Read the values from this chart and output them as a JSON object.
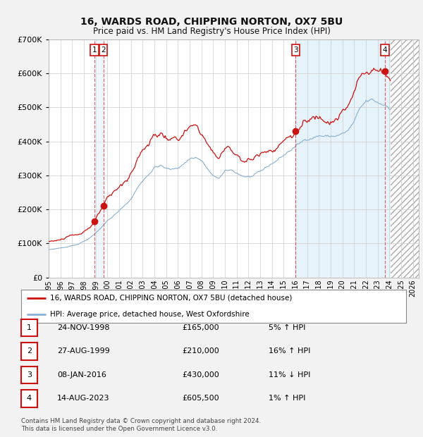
{
  "title": "16, WARDS ROAD, CHIPPING NORTON, OX7 5BU",
  "subtitle": "Price paid vs. HM Land Registry's House Price Index (HPI)",
  "hpi_color": "#87b0d4",
  "price_color": "#cc1111",
  "background_color": "#f2f2f2",
  "plot_bg_color": "#ffffff",
  "grid_color": "#cccccc",
  "ylim": [
    0,
    700000
  ],
  "yticks": [
    0,
    100000,
    200000,
    300000,
    400000,
    500000,
    600000,
    700000
  ],
  "xlim_start": 1995.0,
  "xlim_end": 2026.5,
  "transactions": [
    {
      "num": 1,
      "date": "24-NOV-1998",
      "price": 165000,
      "x": 1998.9,
      "pct": "5%",
      "dir": "↑"
    },
    {
      "num": 2,
      "date": "27-AUG-1999",
      "price": 210000,
      "x": 1999.65,
      "pct": "16%",
      "dir": "↑"
    },
    {
      "num": 3,
      "date": "08-JAN-2016",
      "price": 430000,
      "x": 2016.03,
      "pct": "11%",
      "dir": "↓"
    },
    {
      "num": 4,
      "date": "14-AUG-2023",
      "price": 605500,
      "x": 2023.62,
      "pct": "1%",
      "dir": "↑"
    }
  ],
  "legend_entries": [
    {
      "label": "16, WARDS ROAD, CHIPPING NORTON, OX7 5BU (detached house)",
      "color": "#cc1111"
    },
    {
      "label": "HPI: Average price, detached house, West Oxfordshire",
      "color": "#87b0d4"
    }
  ],
  "footer": "Contains HM Land Registry data © Crown copyright and database right 2024.\nThis data is licensed under the Open Government Licence v3.0.",
  "blue_bg_start": 2016.0,
  "blue_bg_end": 2024.1,
  "hatch_start": 2024.1,
  "hatch_end": 2026.5,
  "shade_between_t1_t2_start": 1998.9,
  "shade_between_t1_t2_end": 1999.65
}
